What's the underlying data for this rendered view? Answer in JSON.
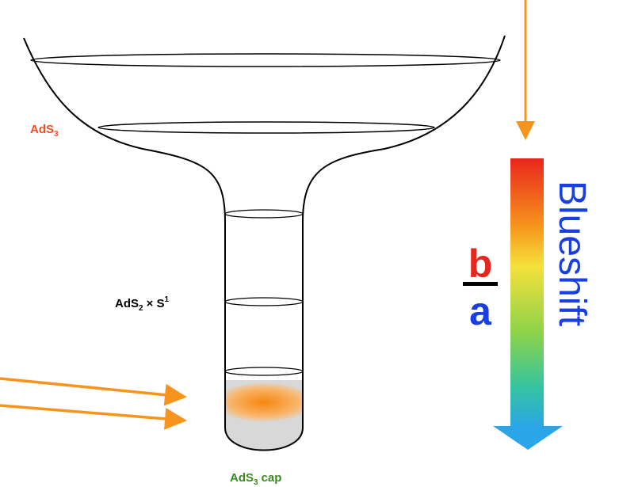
{
  "labels": {
    "ads3": [
      "AdS",
      "3"
    ],
    "ads2_s1": [
      "AdS",
      "2",
      "× S",
      "1"
    ],
    "cap": [
      "AdS",
      "3",
      "cap"
    ]
  },
  "ratio": {
    "numerator": "b",
    "denominator": "a"
  },
  "blueshift": "Blueshift"
}
